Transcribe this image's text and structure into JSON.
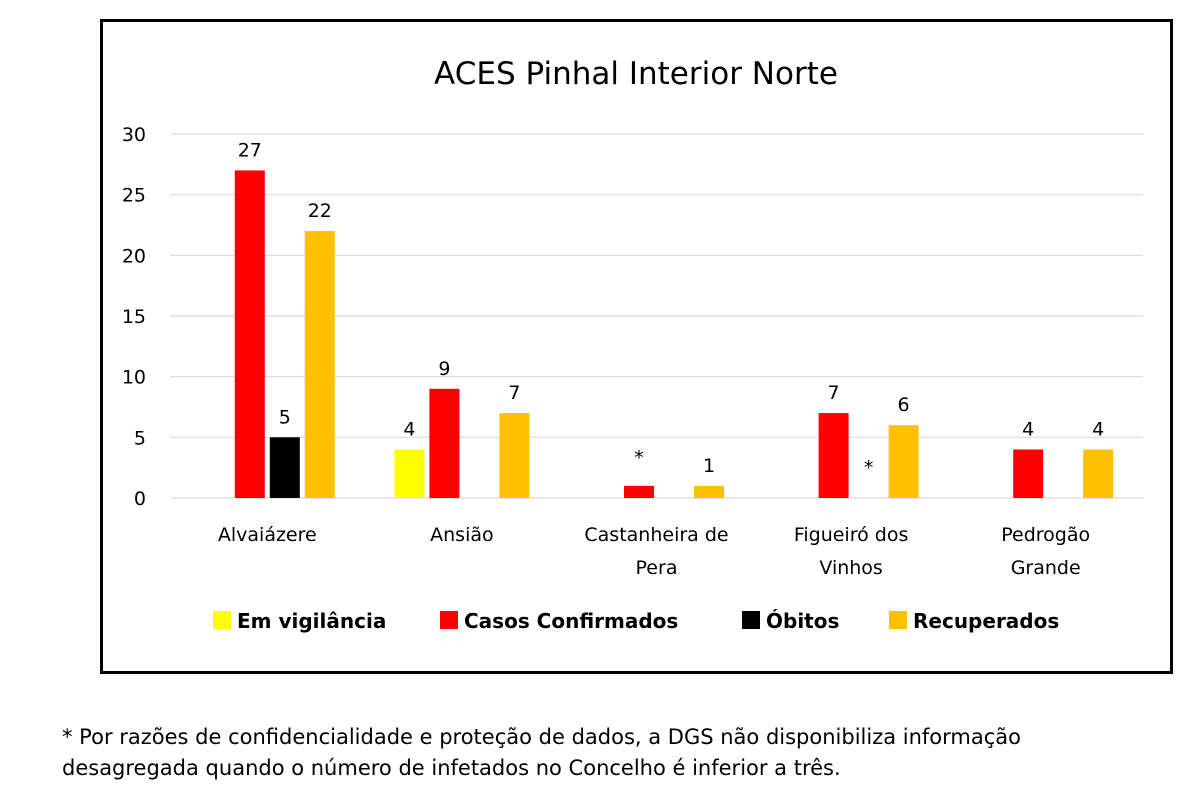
{
  "chart_data": {
    "type": "bar",
    "title": "ACES Pinhal Interior Norte",
    "categories": [
      [
        "Alvaiázere"
      ],
      [
        "Ansião"
      ],
      [
        "Castanheira de",
        "Pera"
      ],
      [
        "Figueiró dos",
        "Vinhos"
      ],
      [
        "Pedrogão",
        "Grande"
      ]
    ],
    "series": [
      {
        "name": "Em vigilância",
        "color": "#FFFF00",
        "values": [
          null,
          4,
          null,
          null,
          null
        ],
        "labels": [
          "",
          "4",
          "",
          "",
          ""
        ]
      },
      {
        "name": "Casos Confirmados",
        "color": "#FF0000",
        "values": [
          27,
          9,
          1,
          7,
          4
        ],
        "labels": [
          "27",
          "9",
          "*",
          "7",
          "4"
        ]
      },
      {
        "name": "Óbitos",
        "color": "#000000",
        "values": [
          5,
          null,
          null,
          null,
          null
        ],
        "labels": [
          "5",
          "",
          "",
          "*",
          ""
        ]
      },
      {
        "name": "Recuperados",
        "color": "#FFC000",
        "values": [
          22,
          7,
          1,
          6,
          4
        ],
        "labels": [
          "22",
          "7",
          "1",
          "6",
          "4"
        ]
      }
    ],
    "ylim": [
      0,
      30
    ],
    "yticks": [
      0,
      5,
      10,
      15,
      20,
      25,
      30
    ],
    "grid": true,
    "legend": "bottom"
  },
  "footnote": {
    "line1": "* Por razões de confidencialidade e proteção de dados, a DGS não disponibiliza informação",
    "line2": "desagregada quando o número de infetados no Concelho é inferior a três."
  }
}
